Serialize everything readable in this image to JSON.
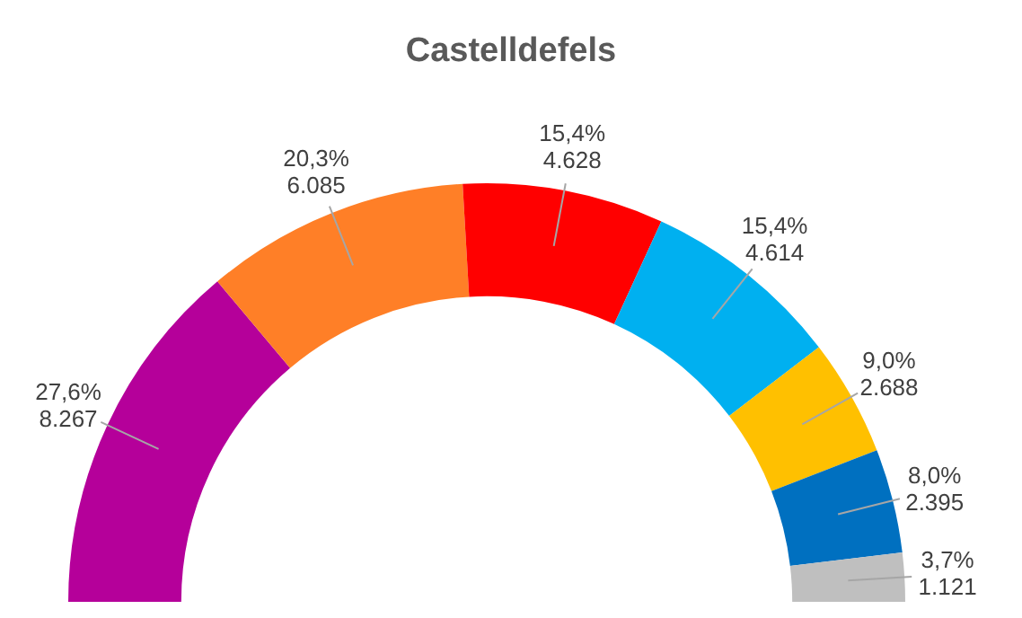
{
  "chart_data": {
    "type": "donut",
    "title": "Castelldefels",
    "categories": [
      null,
      null,
      null,
      null,
      null,
      null,
      null
    ],
    "values": [
      8267,
      6085,
      4628,
      4614,
      2688,
      2395,
      1121
    ],
    "colors": [
      "#b5009a",
      "#ff7f27",
      "#ff0000",
      "#00b0f0",
      "#ffc000",
      "#0070c0",
      "#bfbfbf"
    ],
    "value_labels": [
      "27,6%\n8.267",
      "20,3%\n6.085",
      "15,4%\n4.628",
      "15,4%\n4.614",
      "9,0%\n2.688",
      "8,0%\n2.395",
      "3,7%\n1.121"
    ]
  }
}
